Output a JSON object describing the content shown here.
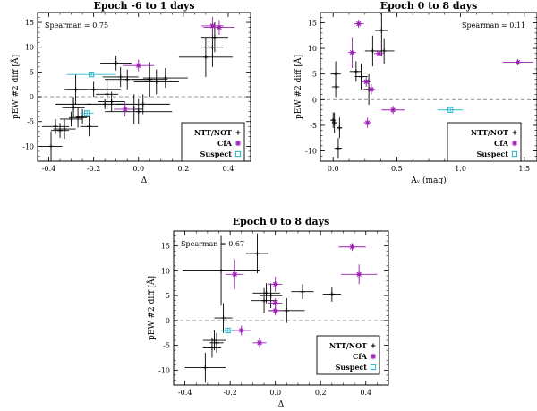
{
  "figure": {
    "colors": {
      "ntt": "#000000",
      "cfa": "#9b1fb5",
      "suspect": "#33b8d1",
      "zero_line": "#888888"
    },
    "legend_labels": [
      "NTT/NOT",
      "CfA",
      "Suspect"
    ],
    "legend_symbols": [
      "+",
      "*",
      "□"
    ]
  },
  "chart_data": [
    {
      "type": "scatter",
      "title": "Epoch -6 to 1 days",
      "xlabel": "Δ",
      "ylabel": "pEW #2 diff [Å]",
      "annotation": "Spearman = 0.75",
      "xlim": [
        -0.45,
        0.5
      ],
      "ylim": [
        -13,
        17
      ],
      "xticks": [
        -0.4,
        -0.2,
        0.0,
        0.2,
        0.4
      ],
      "xticklabels": [
        "-0.4",
        "-0.2",
        "0.0",
        "0.2",
        "0.4"
      ],
      "yticks": [
        -10,
        -5,
        0,
        5,
        10,
        15
      ],
      "yticklabels": [
        "-10",
        "-5",
        "0",
        "5",
        "10",
        "15"
      ],
      "legend_position": "bottom-right",
      "series": [
        {
          "name": "NTT/NOT",
          "marker": "plus",
          "points": [
            {
              "x": -0.39,
              "y": -10.0,
              "xerr": 0.05,
              "yerr": 3.0
            },
            {
              "x": -0.37,
              "y": -6.0,
              "xerr": 0.06,
              "yerr": 1.5
            },
            {
              "x": -0.35,
              "y": -6.8,
              "xerr": 0.04,
              "yerr": 1.5
            },
            {
              "x": -0.33,
              "y": -6.5,
              "xerr": 0.05,
              "yerr": 2.0
            },
            {
              "x": -0.3,
              "y": -4.5,
              "xerr": 0.05,
              "yerr": 1.5
            },
            {
              "x": -0.29,
              "y": -2.2,
              "xerr": 0.05,
              "yerr": 2.0
            },
            {
              "x": -0.29,
              "y": -1.5,
              "xerr": 0.08,
              "yerr": 1.5
            },
            {
              "x": -0.28,
              "y": 1.5,
              "xerr": 0.05,
              "yerr": 3.0
            },
            {
              "x": -0.27,
              "y": -4.2,
              "xerr": 0.04,
              "yerr": 2.0
            },
            {
              "x": -0.25,
              "y": -4.0,
              "xerr": 0.03,
              "yerr": 1.5
            },
            {
              "x": -0.22,
              "y": -6.0,
              "xerr": 0.04,
              "yerr": 2.0
            },
            {
              "x": -0.2,
              "y": 1.5,
              "xerr": 0.12,
              "yerr": 1.5
            },
            {
              "x": -0.15,
              "y": -1.5,
              "xerr": 0.08,
              "yerr": 1.0
            },
            {
              "x": -0.14,
              "y": 0.5,
              "xerr": 0.05,
              "yerr": 3.0
            },
            {
              "x": -0.12,
              "y": -1.0,
              "xerr": 0.06,
              "yerr": 2.0
            },
            {
              "x": -0.1,
              "y": 6.8,
              "xerr": 0.07,
              "yerr": 1.5
            },
            {
              "x": -0.08,
              "y": 4.0,
              "xerr": 0.08,
              "yerr": 2.0
            },
            {
              "x": -0.05,
              "y": 3.5,
              "xerr": 0.1,
              "yerr": 2.0
            },
            {
              "x": -0.02,
              "y": -2.5,
              "xerr": 0.04,
              "yerr": 3.0
            },
            {
              "x": 0.0,
              "y": -3.0,
              "xerr": 0.15,
              "yerr": 2.5
            },
            {
              "x": 0.02,
              "y": -1.5,
              "xerr": 0.12,
              "yerr": 2.0
            },
            {
              "x": 0.05,
              "y": 3.5,
              "xerr": 0.08,
              "yerr": 3.5
            },
            {
              "x": 0.08,
              "y": 3.0,
              "xerr": 0.1,
              "yerr": 2.5
            },
            {
              "x": 0.12,
              "y": 3.8,
              "xerr": 0.1,
              "yerr": 2.0
            },
            {
              "x": 0.3,
              "y": 8.0,
              "xerr": 0.12,
              "yerr": 4.0
            },
            {
              "x": 0.33,
              "y": 10.0,
              "xerr": 0.05,
              "yerr": 4.0
            },
            {
              "x": 0.34,
              "y": 12.0,
              "xerr": 0.06,
              "yerr": 3.0
            }
          ]
        },
        {
          "name": "CfA",
          "marker": "asterisk",
          "points": [
            {
              "x": 0.0,
              "y": 6.3,
              "xerr": 0.07,
              "yerr": 1.2
            },
            {
              "x": -0.06,
              "y": -2.5,
              "xerr": 0.05,
              "yerr": 1.5
            },
            {
              "x": 0.33,
              "y": 14.3,
              "xerr": 0.05,
              "yerr": 1.8
            },
            {
              "x": 0.36,
              "y": 14.0,
              "xerr": 0.07,
              "yerr": 1.5
            }
          ]
        },
        {
          "name": "Suspect",
          "marker": "square",
          "points": [
            {
              "x": -0.21,
              "y": 4.5,
              "xerr": 0.11,
              "yerr": 0.4
            },
            {
              "x": -0.23,
              "y": -3.3,
              "xerr": 0.03,
              "yerr": 0.4
            }
          ]
        }
      ]
    },
    {
      "type": "scatter",
      "title": "Epoch 0 to 8 days",
      "xlabel": "Aᵥ (mag)",
      "ylabel": "pEW #2 diff [Å]",
      "annotation": "Spearman = 0.11",
      "xlim": [
        -0.1,
        1.6
      ],
      "ylim": [
        -12,
        17
      ],
      "xticks": [
        0.0,
        0.5,
        1.0,
        1.5
      ],
      "xticklabels": [
        "0.0",
        "0.5",
        "1.0",
        "1.5"
      ],
      "yticks": [
        -10,
        -5,
        0,
        5,
        10,
        15
      ],
      "yticklabels": [
        "-10",
        "-5",
        "0",
        "5",
        "10",
        "15"
      ],
      "legend_position": "bottom-right",
      "series": [
        {
          "name": "NTT/NOT",
          "marker": "plus",
          "points": [
            {
              "x": 0.0,
              "y": -4.0,
              "xerr": 0.02,
              "yerr": 1.5
            },
            {
              "x": 0.01,
              "y": -4.5,
              "xerr": 0.02,
              "yerr": 2.0
            },
            {
              "x": 0.02,
              "y": 2.5,
              "xerr": 0.03,
              "yerr": 2.0
            },
            {
              "x": 0.02,
              "y": 5.0,
              "xerr": 0.04,
              "yerr": 2.5
            },
            {
              "x": 0.04,
              "y": -9.5,
              "xerr": 0.03,
              "yerr": 2.0
            },
            {
              "x": 0.05,
              "y": -5.5,
              "xerr": 0.02,
              "yerr": 2.0
            },
            {
              "x": 0.18,
              "y": 5.5,
              "xerr": 0.05,
              "yerr": 2.0
            },
            {
              "x": 0.22,
              "y": 4.5,
              "xerr": 0.05,
              "yerr": 2.5
            },
            {
              "x": 0.28,
              "y": 2.0,
              "xerr": 0.04,
              "yerr": 3.0
            },
            {
              "x": 0.31,
              "y": 9.5,
              "xerr": 0.06,
              "yerr": 3.0
            },
            {
              "x": 0.38,
              "y": 13.5,
              "xerr": 0.05,
              "yerr": 5.0
            },
            {
              "x": 0.4,
              "y": 9.5,
              "xerr": 0.08,
              "yerr": 2.5
            }
          ]
        },
        {
          "name": "CfA",
          "marker": "asterisk",
          "points": [
            {
              "x": 0.15,
              "y": 9.2,
              "xerr": 0.03,
              "yerr": 3.0
            },
            {
              "x": 0.2,
              "y": 14.8,
              "xerr": 0.04,
              "yerr": 0.8
            },
            {
              "x": 0.26,
              "y": 3.5,
              "xerr": 0.04,
              "yerr": 1.0
            },
            {
              "x": 0.27,
              "y": -4.5,
              "xerr": 0.03,
              "yerr": 1.0
            },
            {
              "x": 0.3,
              "y": 2.0,
              "xerr": 0.03,
              "yerr": 1.0
            },
            {
              "x": 0.36,
              "y": 9.0,
              "xerr": 0.04,
              "yerr": 2.0
            },
            {
              "x": 0.47,
              "y": -2.0,
              "xerr": 0.09,
              "yerr": 0.8
            },
            {
              "x": 1.45,
              "y": 7.3,
              "xerr": 0.12,
              "yerr": 0.6
            }
          ]
        },
        {
          "name": "Suspect",
          "marker": "square",
          "points": [
            {
              "x": 0.92,
              "y": -2.0,
              "xerr": 0.1,
              "yerr": 0.3
            }
          ]
        }
      ]
    },
    {
      "type": "scatter",
      "title": "Epoch 0 to 8 days",
      "xlabel": "Δ",
      "ylabel": "pEW #2 diff [Å]",
      "annotation": "Spearman = 0.67",
      "xlim": [
        -0.45,
        0.5
      ],
      "ylim": [
        -13,
        18
      ],
      "xticks": [
        -0.4,
        -0.2,
        0.0,
        0.2,
        0.4
      ],
      "xticklabels": [
        "-0.4",
        "-0.2",
        "0.0",
        "0.2",
        "0.4"
      ],
      "yticks": [
        -10,
        -5,
        0,
        5,
        10,
        15
      ],
      "yticklabels": [
        "-10",
        "-5",
        "0",
        "5",
        "10",
        "15"
      ],
      "legend_position": "bottom-right",
      "series": [
        {
          "name": "NTT/NOT",
          "marker": "plus",
          "points": [
            {
              "x": -0.31,
              "y": -9.5,
              "xerr": 0.09,
              "yerr": 3.0
            },
            {
              "x": -0.28,
              "y": -5.5,
              "xerr": 0.04,
              "yerr": 2.0
            },
            {
              "x": -0.27,
              "y": -4.0,
              "xerr": 0.05,
              "yerr": 2.0
            },
            {
              "x": -0.26,
              "y": -4.5,
              "xerr": 0.03,
              "yerr": 2.0
            },
            {
              "x": -0.24,
              "y": 10.0,
              "xerr": 0.17,
              "yerr": 7.0
            },
            {
              "x": -0.23,
              "y": 0.5,
              "xerr": 0.04,
              "yerr": 3.0
            },
            {
              "x": -0.08,
              "y": 13.5,
              "xerr": 0.05,
              "yerr": 4.0
            },
            {
              "x": -0.05,
              "y": 4.0,
              "xerr": 0.06,
              "yerr": 2.5
            },
            {
              "x": -0.04,
              "y": 5.5,
              "xerr": 0.06,
              "yerr": 2.0
            },
            {
              "x": -0.02,
              "y": 5.0,
              "xerr": 0.05,
              "yerr": 2.5
            },
            {
              "x": 0.05,
              "y": 2.0,
              "xerr": 0.08,
              "yerr": 2.5
            },
            {
              "x": 0.12,
              "y": 5.8,
              "xerr": 0.05,
              "yerr": 1.5
            },
            {
              "x": 0.25,
              "y": 5.3,
              "xerr": 0.04,
              "yerr": 1.5
            }
          ]
        },
        {
          "name": "CfA",
          "marker": "asterisk",
          "points": [
            {
              "x": -0.18,
              "y": 9.3,
              "xerr": 0.04,
              "yerr": 3.0
            },
            {
              "x": -0.15,
              "y": -2.0,
              "xerr": 0.04,
              "yerr": 1.0
            },
            {
              "x": -0.07,
              "y": -4.5,
              "xerr": 0.03,
              "yerr": 1.0
            },
            {
              "x": 0.0,
              "y": 7.3,
              "xerr": 0.03,
              "yerr": 1.5
            },
            {
              "x": 0.0,
              "y": 2.0,
              "xerr": 0.03,
              "yerr": 1.0
            },
            {
              "x": 0.0,
              "y": 3.5,
              "xerr": 0.03,
              "yerr": 1.0
            },
            {
              "x": 0.34,
              "y": 14.8,
              "xerr": 0.06,
              "yerr": 0.8
            },
            {
              "x": 0.37,
              "y": 9.3,
              "xerr": 0.08,
              "yerr": 2.0
            }
          ]
        },
        {
          "name": "Suspect",
          "marker": "square",
          "points": [
            {
              "x": -0.21,
              "y": -2.0,
              "xerr": 0.03,
              "yerr": 0.4
            }
          ]
        }
      ]
    }
  ]
}
